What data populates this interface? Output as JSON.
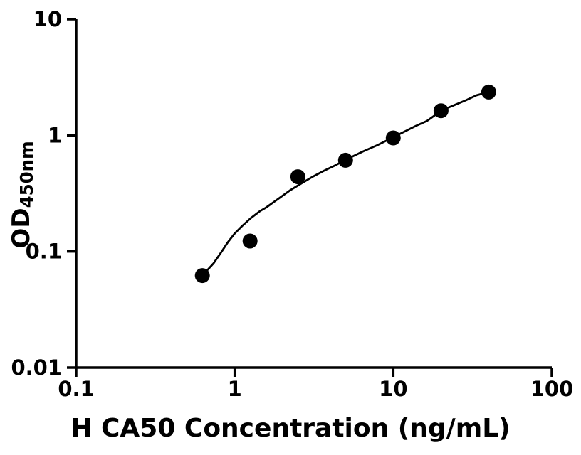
{
  "chart_data": {
    "type": "scatter",
    "title": "",
    "xlabel": "H CA50 Concentration (ng/mL)",
    "ylabel_main": "OD",
    "ylabel_sub": "450nm",
    "x_scale": "log",
    "y_scale": "log",
    "xlim": [
      0.1,
      100
    ],
    "ylim": [
      0.01,
      10
    ],
    "grid": false,
    "legend": "none",
    "x_ticks": [
      {
        "value": 0.1,
        "label": "0.1"
      },
      {
        "value": 1,
        "label": "1"
      },
      {
        "value": 10,
        "label": "10"
      },
      {
        "value": 100,
        "label": "100"
      }
    ],
    "y_ticks": [
      {
        "value": 0.01,
        "label": "0.01"
      },
      {
        "value": 0.1,
        "label": "0.1"
      },
      {
        "value": 1,
        "label": "1"
      },
      {
        "value": 10,
        "label": "10"
      }
    ],
    "series": [
      {
        "name": "standard-points",
        "type": "scatter",
        "marker": "filled-circle",
        "points": [
          {
            "conc": 0.625,
            "od": 0.062
          },
          {
            "conc": 1.25,
            "od": 0.123
          },
          {
            "conc": 2.5,
            "od": 0.44
          },
          {
            "conc": 5,
            "od": 0.61
          },
          {
            "conc": 10,
            "od": 0.95
          },
          {
            "conc": 20,
            "od": 1.63
          },
          {
            "conc": 40,
            "od": 2.36
          }
        ]
      },
      {
        "name": "fit-curve",
        "type": "line",
        "points": [
          {
            "conc": 0.625,
            "od": 0.062
          },
          {
            "conc": 0.735,
            "od": 0.079
          },
          {
            "conc": 0.82,
            "od": 0.098
          },
          {
            "conc": 0.905,
            "od": 0.12
          },
          {
            "conc": 1.0,
            "od": 0.143
          },
          {
            "conc": 1.11,
            "od": 0.165
          },
          {
            "conc": 1.26,
            "od": 0.193
          },
          {
            "conc": 1.44,
            "od": 0.222
          },
          {
            "conc": 1.57,
            "od": 0.238
          },
          {
            "conc": 1.87,
            "od": 0.282
          },
          {
            "conc": 2.22,
            "od": 0.334
          },
          {
            "conc": 2.63,
            "od": 0.385
          },
          {
            "conc": 3.13,
            "od": 0.443
          },
          {
            "conc": 3.66,
            "od": 0.496
          },
          {
            "conc": 4.27,
            "od": 0.548
          },
          {
            "conc": 5.09,
            "od": 0.622
          },
          {
            "conc": 6.45,
            "od": 0.726
          },
          {
            "conc": 7.95,
            "od": 0.824
          },
          {
            "conc": 10.0,
            "od": 0.963
          },
          {
            "conc": 13.9,
            "od": 1.206
          },
          {
            "conc": 16.3,
            "od": 1.331
          },
          {
            "conc": 20.3,
            "od": 1.645
          },
          {
            "conc": 28.7,
            "od": 2.004
          },
          {
            "conc": 33.5,
            "od": 2.212
          },
          {
            "conc": 40.0,
            "od": 2.36
          }
        ]
      }
    ],
    "colors": {
      "background": "#ffffff",
      "axis": "#000000",
      "marker": "#000000",
      "curve": "#000000",
      "text": "#000000"
    }
  }
}
